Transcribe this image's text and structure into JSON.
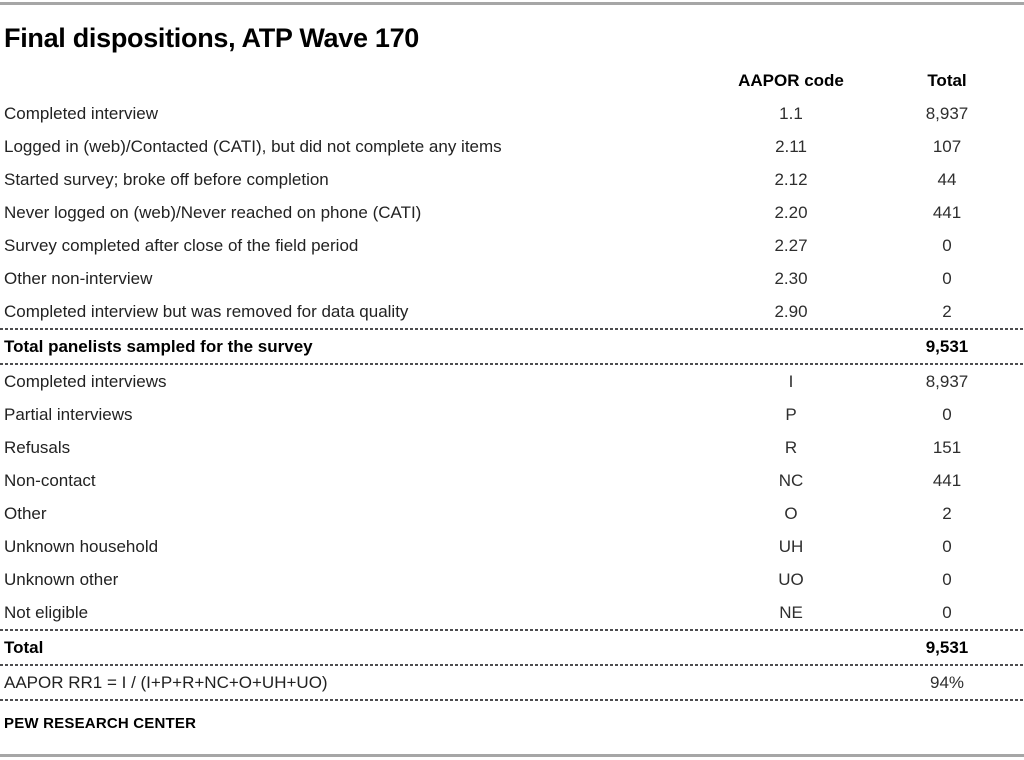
{
  "page": {
    "title": "Final dispositions, ATP Wave 170",
    "footer": "PEW RESEARCH CENTER"
  },
  "table": {
    "header": {
      "label": "",
      "code": "AAPOR code",
      "total": "Total"
    },
    "rows": [
      {
        "kind": "data",
        "label": "Completed interview",
        "code": "1.1",
        "total": "8,937"
      },
      {
        "kind": "data",
        "label": "Logged in (web)/Contacted (CATI), but did not complete any items",
        "code": "2.11",
        "total": "107"
      },
      {
        "kind": "data",
        "label": "Started survey; broke off before completion",
        "code": "2.12",
        "total": "44"
      },
      {
        "kind": "data",
        "label": "Never logged on (web)/Never reached on phone (CATI)",
        "code": "2.20",
        "total": "441"
      },
      {
        "kind": "data",
        "label": "Survey completed after close of the field period",
        "code": "2.27",
        "total": "0"
      },
      {
        "kind": "data",
        "label": "Other non-interview",
        "code": "2.30",
        "total": "0"
      },
      {
        "kind": "data",
        "label": "Completed interview but was removed for data quality",
        "code": "2.90",
        "total": "2"
      },
      {
        "kind": "summary",
        "label": "Total panelists sampled for the survey",
        "code": "",
        "total": "9,531"
      },
      {
        "kind": "data",
        "label": "Completed interviews",
        "code": "I",
        "total": "8,937"
      },
      {
        "kind": "data",
        "label": "Partial interviews",
        "code": "P",
        "total": "0"
      },
      {
        "kind": "data",
        "label": "Refusals",
        "code": "R",
        "total": "151"
      },
      {
        "kind": "data",
        "label": "Non-contact",
        "code": "NC",
        "total": "441"
      },
      {
        "kind": "data",
        "label": "Other",
        "code": "O",
        "total": "2"
      },
      {
        "kind": "data",
        "label": "Unknown household",
        "code": "UH",
        "total": "0"
      },
      {
        "kind": "data",
        "label": "Unknown other",
        "code": "UO",
        "total": "0"
      },
      {
        "kind": "data",
        "label": "Not eligible",
        "code": "NE",
        "total": "0"
      },
      {
        "kind": "summary",
        "label": "Total",
        "code": "",
        "total": "9,531"
      },
      {
        "kind": "rate",
        "label": "AAPOR RR1 = I / (I+P+R+NC+O+UH+UO)",
        "code": "",
        "total": "94%"
      }
    ]
  },
  "colors": {
    "text": "#1a1a1a",
    "bold_text": "#000000",
    "separator": "#4d4d4f",
    "page_rule": "#a6a6a6",
    "background": "#ffffff"
  }
}
